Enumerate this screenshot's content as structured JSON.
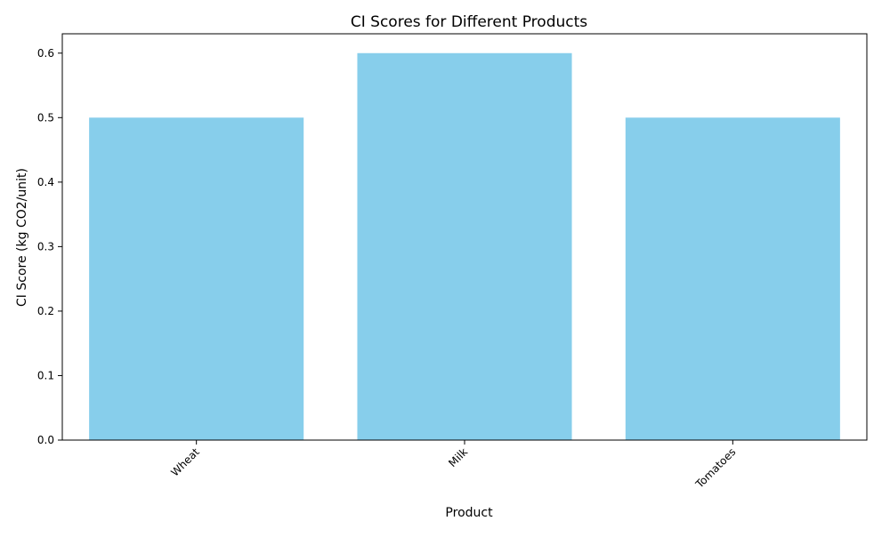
{
  "chart_data": {
    "type": "bar",
    "title": "CI Scores for Different Products",
    "xlabel": "Product",
    "ylabel": "CI Score (kg CO2/unit)",
    "categories": [
      "Wheat",
      "Milk",
      "Tomatoes"
    ],
    "values": [
      0.5,
      0.6,
      0.5
    ],
    "ylim": [
      0,
      0.63
    ],
    "yticks": [
      "0.0",
      "0.1",
      "0.2",
      "0.3",
      "0.4",
      "0.5",
      "0.6"
    ],
    "bar_color": "#87CEEB",
    "grid": false,
    "legend": "none",
    "xtick_rotation": "45 degrees"
  }
}
